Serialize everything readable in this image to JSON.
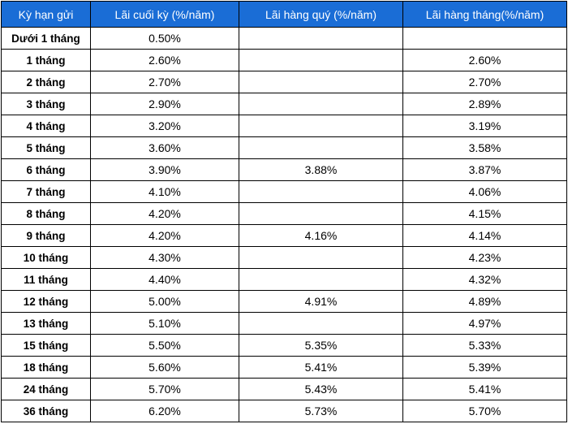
{
  "table": {
    "headers": [
      "Kỳ hạn gửi",
      "Lãi cuối kỳ (%/năm)",
      "Lãi hàng quý (%/năm)",
      "Lãi hàng tháng(%/năm)"
    ],
    "rows": [
      [
        "Dưới 1 tháng",
        "0.50%",
        "",
        ""
      ],
      [
        "1 tháng",
        "2.60%",
        "",
        "2.60%"
      ],
      [
        "2 tháng",
        "2.70%",
        "",
        "2.70%"
      ],
      [
        "3 tháng",
        "2.90%",
        "",
        "2.89%"
      ],
      [
        "4 tháng",
        "3.20%",
        "",
        "3.19%"
      ],
      [
        "5 tháng",
        "3.60%",
        "",
        "3.58%"
      ],
      [
        "6 tháng",
        "3.90%",
        "3.88%",
        "3.87%"
      ],
      [
        "7 tháng",
        "4.10%",
        "",
        "4.06%"
      ],
      [
        "8 tháng",
        "4.20%",
        "",
        "4.15%"
      ],
      [
        "9 tháng",
        "4.20%",
        "4.16%",
        "4.14%"
      ],
      [
        "10 tháng",
        "4.30%",
        "",
        "4.23%"
      ],
      [
        "11 tháng",
        "4.40%",
        "",
        "4.32%"
      ],
      [
        "12 tháng",
        "5.00%",
        "4.91%",
        "4.89%"
      ],
      [
        "13 tháng",
        "5.10%",
        "",
        "4.97%"
      ],
      [
        "15 tháng",
        "5.50%",
        "5.35%",
        "5.33%"
      ],
      [
        "18 tháng",
        "5.60%",
        "5.41%",
        "5.39%"
      ],
      [
        "24 tháng",
        "5.70%",
        "5.43%",
        "5.41%"
      ],
      [
        "36 tháng",
        "6.20%",
        "5.73%",
        "5.70%"
      ]
    ],
    "header_color": "#1a6dd6",
    "header_text_color": "#ffffff"
  }
}
